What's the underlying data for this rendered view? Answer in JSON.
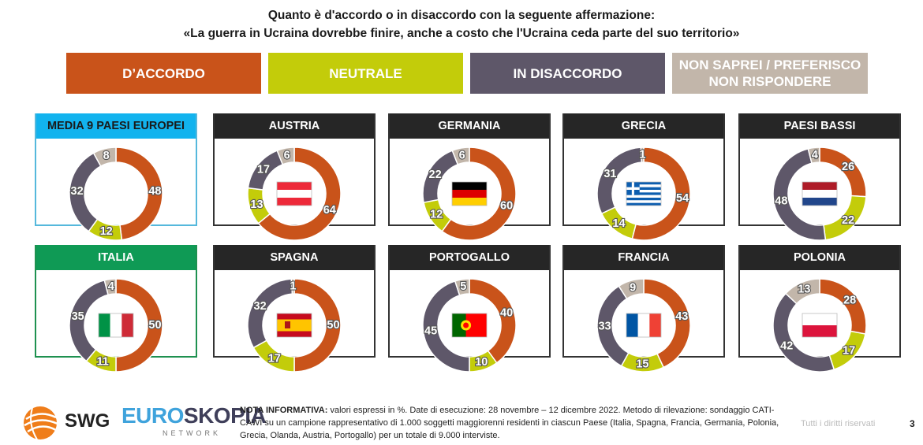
{
  "header": {
    "line1": "Quanto è d'accordo o in disaccordo con la seguente affermazione:",
    "line2": "«La guerra in Ucraina dovrebbe finire, anche a costo che l'Ucraina ceda parte del suo territorio»"
  },
  "legend": [
    {
      "label": "D’ACCORDO",
      "color": "#c9531a"
    },
    {
      "label": "NEUTRALE",
      "color": "#c3cc0a"
    },
    {
      "label": "IN DISACCORDO",
      "color": "#5e5769"
    },
    {
      "label": "NON SAPREI / PREFERISCO NON RISPONDERE",
      "color": "#c2b6aa"
    }
  ],
  "colors": {
    "accordo": "#c9531a",
    "neutrale": "#c3cc0a",
    "disaccordo": "#5e5769",
    "nonsaprei": "#c2b6aa"
  },
  "chart_data": {
    "type": "donut",
    "categories": [
      "D’ACCORDO",
      "NEUTRALE",
      "IN DISACCORDO",
      "NON SAPREI / PREFERISCO NON RISPONDERE"
    ],
    "unit": "%",
    "panels": [
      {
        "name": "MEDIA 9 PAESI EUROPEI",
        "values": [
          48,
          12,
          32,
          8
        ],
        "flag": "none",
        "style": "avg"
      },
      {
        "name": "AUSTRIA",
        "values": [
          64,
          13,
          17,
          6
        ],
        "flag": "austria-flag",
        "style": "dark"
      },
      {
        "name": "GERMANIA",
        "values": [
          60,
          12,
          22,
          6
        ],
        "flag": "germany-flag",
        "style": "dark"
      },
      {
        "name": "GRECIA",
        "values": [
          54,
          14,
          31,
          1
        ],
        "flag": "greece-flag",
        "style": "dark"
      },
      {
        "name": "PAESI BASSI",
        "values": [
          26,
          22,
          48,
          4
        ],
        "flag": "netherlands-flag",
        "style": "dark"
      },
      {
        "name": "ITALIA",
        "values": [
          50,
          11,
          35,
          4
        ],
        "flag": "italy-flag",
        "style": "italy"
      },
      {
        "name": "SPAGNA",
        "values": [
          50,
          17,
          32,
          1
        ],
        "flag": "spain-flag",
        "style": "dark"
      },
      {
        "name": "PORTOGALLO",
        "values": [
          40,
          10,
          45,
          5
        ],
        "flag": "portugal-flag",
        "style": "dark"
      },
      {
        "name": "FRANCIA",
        "values": [
          43,
          15,
          33,
          9
        ],
        "flag": "france-flag",
        "style": "dark"
      },
      {
        "name": "POLONIA",
        "values": [
          28,
          17,
          42,
          13
        ],
        "flag": "poland-flag",
        "style": "dark"
      }
    ]
  },
  "footer": {
    "swg": "SWG",
    "euro": "EURO",
    "skopia": "SKOPIA",
    "network": "NETWORK",
    "note_label": "NOTA INFORMATIVA:",
    "note_text": " valori espressi in %. Date di esecuzione: 28 novembre – 12 dicembre 2022. Metodo di rilevazione: sondaggio CATI-CAWI su un campione rappresentativo di 1.000 soggetti maggiorenni residenti in ciascun Paese (Italia, Spagna, Francia, Germania, Polonia, Grecia, Olanda, Austria, Portogallo) per un totale di 9.000 interviste.",
    "rights": "Tutti i diritti riservati",
    "page": "3"
  }
}
